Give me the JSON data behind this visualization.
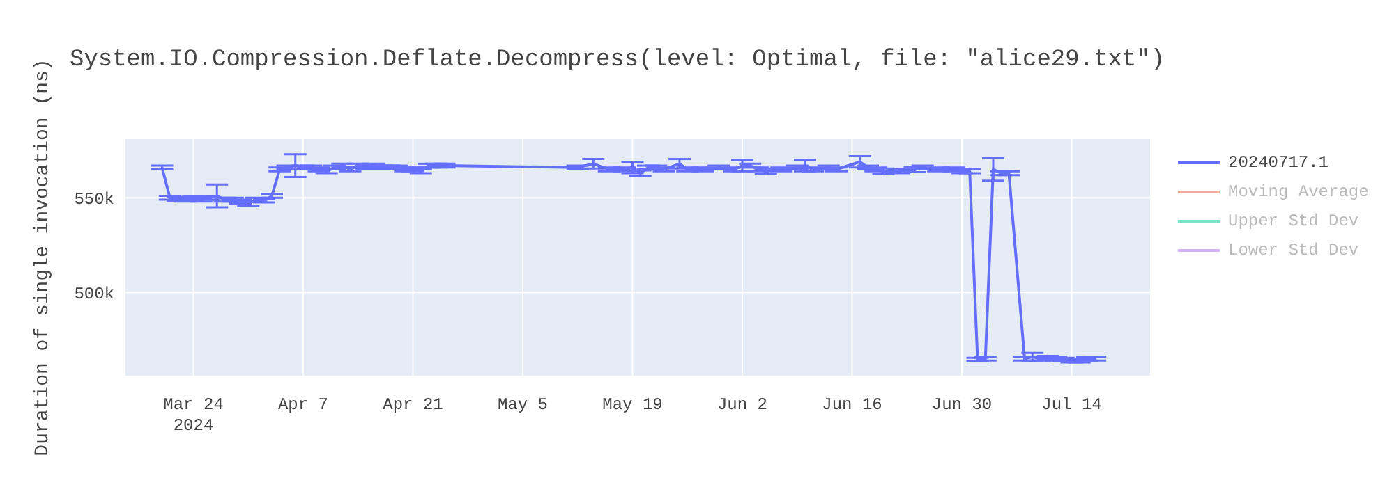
{
  "chart_data": {
    "type": "line",
    "title": "System.IO.Compression.Deflate.Decompress(level: Optimal, file: \"alice29.txt\")",
    "ylabel": "Duration of single invocation (ns)",
    "x": [
      "2024-03-20",
      "2024-03-21",
      "2024-03-22",
      "2024-03-23",
      "2024-03-24",
      "2024-03-25",
      "2024-03-26",
      "2024-03-27",
      "2024-03-28",
      "2024-03-29",
      "2024-03-30",
      "2024-03-31",
      "2024-04-01",
      "2024-04-02",
      "2024-04-03",
      "2024-04-04",
      "2024-04-05",
      "2024-04-06",
      "2024-04-07",
      "2024-04-08",
      "2024-04-09",
      "2024-04-10",
      "2024-04-11",
      "2024-04-12",
      "2024-04-13",
      "2024-04-14",
      "2024-04-15",
      "2024-04-16",
      "2024-04-17",
      "2024-04-18",
      "2024-04-19",
      "2024-04-20",
      "2024-04-21",
      "2024-04-22",
      "2024-04-23",
      "2024-04-24",
      "2024-04-25",
      "2024-05-12",
      "2024-05-14",
      "2024-05-16",
      "2024-05-18",
      "2024-05-19",
      "2024-05-20",
      "2024-05-21",
      "2024-05-22",
      "2024-05-23",
      "2024-05-25",
      "2024-05-26",
      "2024-05-28",
      "2024-05-30",
      "2024-06-01",
      "2024-06-02",
      "2024-06-03",
      "2024-06-04",
      "2024-06-05",
      "2024-06-07",
      "2024-06-09",
      "2024-06-10",
      "2024-06-11",
      "2024-06-13",
      "2024-06-14",
      "2024-06-17",
      "2024-06-18",
      "2024-06-19",
      "2024-06-20",
      "2024-06-22",
      "2024-06-24",
      "2024-06-25",
      "2024-06-27",
      "2024-06-29",
      "2024-06-30",
      "2024-07-01",
      "2024-07-02",
      "2024-07-03",
      "2024-07-04",
      "2024-07-05",
      "2024-07-06",
      "2024-07-08",
      "2024-07-09",
      "2024-07-10",
      "2024-07-11",
      "2024-07-12",
      "2024-07-13",
      "2024-07-14",
      "2024-07-15",
      "2024-07-16",
      "2024-07-17"
    ],
    "series": [
      {
        "name": "20240717.1",
        "color": "#636efa",
        "values": [
          566000,
          550000,
          549500,
          549000,
          550000,
          549000,
          550000,
          551000,
          549000,
          549000,
          548000,
          547000,
          549000,
          548500,
          551000,
          565000,
          566000,
          567000,
          566000,
          566000,
          565000,
          564000,
          566000,
          567000,
          565000,
          567000,
          566000,
          567000,
          566000,
          566000,
          566000,
          565000,
          565000,
          564000,
          567000,
          567000,
          567000,
          566000,
          568000,
          565000,
          565000,
          566000,
          563000,
          566000,
          566000,
          565000,
          568000,
          565000,
          565000,
          566000,
          565000,
          567000,
          567000,
          565000,
          564000,
          565000,
          566000,
          567000,
          565000,
          566000,
          565000,
          569000,
          566000,
          565000,
          564000,
          564000,
          565000,
          566000,
          565000,
          565000,
          564000,
          564000,
          464500,
          465000,
          565000,
          563000,
          563000,
          465000,
          466000,
          465000,
          465500,
          465000,
          464500,
          464000,
          464000,
          465000,
          465000
        ],
        "errors": [
          1000,
          1000,
          1000,
          1000,
          1000,
          1000,
          1000,
          6000,
          1000,
          1000,
          1000,
          1500,
          1000,
          1000,
          1000,
          1000,
          1000,
          6000,
          1000,
          1000,
          1000,
          1000,
          1000,
          1000,
          1000,
          1000,
          1000,
          1000,
          1000,
          1000,
          1000,
          1000,
          1000,
          1000,
          1000,
          1000,
          1000,
          1000,
          2500,
          1000,
          1000,
          3000,
          1500,
          1000,
          1000,
          1000,
          2500,
          1000,
          1000,
          1000,
          1000,
          3000,
          1000,
          1000,
          1500,
          1000,
          1000,
          3000,
          1000,
          1000,
          1000,
          3000,
          1000,
          1000,
          1500,
          1000,
          1500,
          1000,
          1000,
          1000,
          1000,
          1000,
          1000,
          1000,
          6000,
          1000,
          1000,
          1000,
          2000,
          1000,
          1000,
          1000,
          1000,
          1000,
          1000,
          1000,
          1000
        ]
      },
      {
        "name": "Moving Average",
        "color": "#f5a898",
        "values": [
          null,
          null,
          null,
          null,
          null,
          null,
          null,
          null,
          null,
          null,
          null,
          null,
          null,
          null,
          null,
          null,
          null,
          null,
          null,
          null,
          null,
          null,
          null,
          null,
          null,
          null,
          null,
          null,
          null,
          null,
          null,
          null,
          null,
          null,
          null,
          null,
          null,
          null,
          null,
          null,
          null,
          null,
          null,
          null,
          null,
          null,
          null,
          null,
          null,
          null,
          null,
          null,
          null,
          null,
          null,
          null,
          null,
          null,
          null,
          null,
          null,
          null,
          null,
          null,
          null,
          null,
          null,
          null,
          null,
          null,
          null,
          null,
          null,
          null,
          null,
          null,
          null,
          null,
          null,
          null,
          null,
          null,
          null,
          null,
          null,
          null,
          null
        ]
      },
      {
        "name": "Upper Std Dev",
        "color": "#7fe5c9",
        "values": [
          null,
          null,
          null,
          null,
          null,
          null,
          null,
          null,
          null,
          null,
          null,
          null,
          null,
          null,
          null,
          null,
          null,
          null,
          null,
          null,
          null,
          null,
          null,
          null,
          null,
          null,
          null,
          null,
          null,
          null,
          null,
          null,
          null,
          null,
          null,
          null,
          null,
          null,
          null,
          null,
          null,
          null,
          null,
          null,
          null,
          null,
          null,
          null,
          null,
          null,
          null,
          null,
          null,
          null,
          null,
          null,
          null,
          null,
          null,
          null,
          null,
          null,
          null,
          null,
          null,
          null,
          null,
          null,
          null,
          null,
          null,
          null,
          null,
          null,
          null,
          null,
          null,
          null,
          null,
          null,
          null,
          null,
          null,
          null,
          null,
          null,
          null
        ]
      },
      {
        "name": "Lower Std Dev",
        "color": "#d5b0fc",
        "values": [
          null,
          null,
          null,
          null,
          null,
          null,
          null,
          null,
          null,
          null,
          null,
          null,
          null,
          null,
          null,
          null,
          null,
          null,
          null,
          null,
          null,
          null,
          null,
          null,
          null,
          null,
          null,
          null,
          null,
          null,
          null,
          null,
          null,
          null,
          null,
          null,
          null,
          null,
          null,
          null,
          null,
          null,
          null,
          null,
          null,
          null,
          null,
          null,
          null,
          null,
          null,
          null,
          null,
          null,
          null,
          null,
          null,
          null,
          null,
          null,
          null,
          null,
          null,
          null,
          null,
          null,
          null,
          null,
          null,
          null,
          null,
          null,
          null,
          null,
          null,
          null,
          null,
          null,
          null,
          null,
          null,
          null,
          null,
          null,
          null,
          null,
          null
        ]
      }
    ],
    "xlim": [
      "2024-03-15T08:00",
      "2024-07-24"
    ],
    "xticks": [
      {
        "value": "2024-03-24",
        "label": "Mar 24\n2024"
      },
      {
        "value": "2024-04-07",
        "label": "Apr 7"
      },
      {
        "value": "2024-04-21",
        "label": "Apr 21"
      },
      {
        "value": "2024-05-05",
        "label": "May 5"
      },
      {
        "value": "2024-05-19",
        "label": "May 19"
      },
      {
        "value": "2024-06-02",
        "label": "Jun 2"
      },
      {
        "value": "2024-06-16",
        "label": "Jun 16"
      },
      {
        "value": "2024-06-30",
        "label": "Jun 30"
      },
      {
        "value": "2024-07-14",
        "label": "Jul 14"
      }
    ],
    "ylim": [
      456000,
      581000
    ],
    "yticks": [
      {
        "value": 500000,
        "label": "500k"
      },
      {
        "value": 550000,
        "label": "550k"
      }
    ],
    "grid": true,
    "legend": "top right",
    "marker": "none",
    "line_style": "solid"
  }
}
